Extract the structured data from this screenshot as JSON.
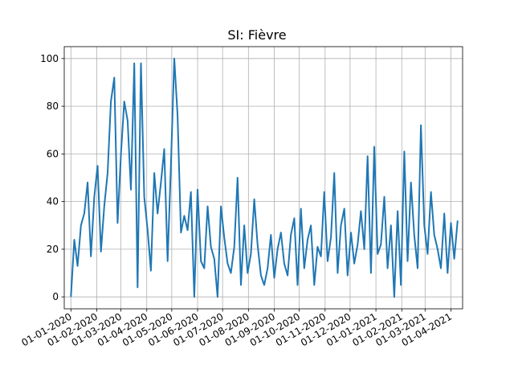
{
  "chart_data": {
    "type": "line",
    "title": "SI: Fièvre",
    "xlabel": "",
    "ylabel": "",
    "grid": true,
    "x_range": [
      "2019-12-24",
      "2021-04-15"
    ],
    "ylim": [
      -5,
      105
    ],
    "x_tick_dates": [
      "2020-01-01",
      "2020-02-01",
      "2020-03-01",
      "2020-04-01",
      "2020-05-01",
      "2020-06-01",
      "2020-07-01",
      "2020-08-01",
      "2020-09-01",
      "2020-10-01",
      "2020-11-01",
      "2020-12-01",
      "2021-01-01",
      "2021-02-01",
      "2021-03-01",
      "2021-04-01"
    ],
    "x_tick_labels": [
      "01-01-2020",
      "01-02-2020",
      "01-03-2020",
      "01-04-2020",
      "01-05-2020",
      "01-06-2020",
      "01-07-2020",
      "01-08-2020",
      "01-09-2020",
      "01-10-2020",
      "01-11-2020",
      "01-12-2020",
      "01-01-2021",
      "01-02-2021",
      "01-03-2021",
      "01-04-2021"
    ],
    "y_ticks": [
      0,
      20,
      40,
      60,
      80,
      100
    ],
    "y_tick_labels": [
      "0",
      "20",
      "40",
      "60",
      "80",
      "100"
    ],
    "series": [
      {
        "color": "#1f77b4",
        "x": [
          "2020-01-01",
          "2020-01-05",
          "2020-01-09",
          "2020-01-13",
          "2020-01-17",
          "2020-01-21",
          "2020-01-25",
          "2020-01-29",
          "2020-02-02",
          "2020-02-06",
          "2020-02-10",
          "2020-02-14",
          "2020-02-18",
          "2020-02-22",
          "2020-02-26",
          "2020-03-01",
          "2020-03-05",
          "2020-03-09",
          "2020-03-13",
          "2020-03-17",
          "2020-03-21",
          "2020-03-25",
          "2020-03-29",
          "2020-04-02",
          "2020-04-06",
          "2020-04-10",
          "2020-04-14",
          "2020-04-18",
          "2020-04-22",
          "2020-04-26",
          "2020-04-30",
          "2020-05-04",
          "2020-05-08",
          "2020-05-12",
          "2020-05-16",
          "2020-05-20",
          "2020-05-24",
          "2020-05-28",
          "2020-06-01",
          "2020-06-05",
          "2020-06-09",
          "2020-06-13",
          "2020-06-17",
          "2020-06-21",
          "2020-06-25",
          "2020-06-29",
          "2020-07-03",
          "2020-07-07",
          "2020-07-11",
          "2020-07-15",
          "2020-07-19",
          "2020-07-23",
          "2020-07-27",
          "2020-07-31",
          "2020-08-04",
          "2020-08-08",
          "2020-08-12",
          "2020-08-16",
          "2020-08-20",
          "2020-08-24",
          "2020-08-28",
          "2020-09-01",
          "2020-09-05",
          "2020-09-09",
          "2020-09-13",
          "2020-09-17",
          "2020-09-21",
          "2020-09-25",
          "2020-09-29",
          "2020-10-03",
          "2020-10-07",
          "2020-10-11",
          "2020-10-15",
          "2020-10-19",
          "2020-10-23",
          "2020-10-27",
          "2020-10-31",
          "2020-11-04",
          "2020-11-08",
          "2020-11-12",
          "2020-11-16",
          "2020-11-20",
          "2020-11-24",
          "2020-11-28",
          "2020-12-02",
          "2020-12-06",
          "2020-12-10",
          "2020-12-14",
          "2020-12-18",
          "2020-12-22",
          "2020-12-26",
          "2020-12-30",
          "2021-01-03",
          "2021-01-07",
          "2021-01-11",
          "2021-01-15",
          "2021-01-19",
          "2021-01-23",
          "2021-01-27",
          "2021-01-31",
          "2021-02-04",
          "2021-02-08",
          "2021-02-12",
          "2021-02-16",
          "2021-02-20",
          "2021-02-24",
          "2021-02-28",
          "2021-03-04",
          "2021-03-08",
          "2021-03-12",
          "2021-03-16",
          "2021-03-20",
          "2021-03-24",
          "2021-03-28",
          "2021-04-01",
          "2021-04-05",
          "2021-04-09"
        ],
        "y": [
          0,
          24,
          13,
          30,
          35,
          48,
          17,
          42,
          55,
          19,
          38,
          52,
          82,
          92,
          31,
          60,
          82,
          74,
          45,
          98,
          4,
          98,
          42,
          28,
          11,
          52,
          35,
          48,
          62,
          15,
          55,
          100,
          76,
          27,
          34,
          28,
          44,
          0,
          45,
          15,
          12,
          38,
          21,
          16,
          0,
          38,
          25,
          14,
          10,
          21,
          50,
          5,
          30,
          10,
          18,
          41,
          22,
          9,
          5,
          12,
          26,
          8,
          20,
          27,
          14,
          9,
          26,
          33,
          5,
          37,
          12,
          24,
          30,
          5,
          21,
          17,
          44,
          15,
          25,
          52,
          10,
          30,
          37,
          9,
          27,
          14,
          22,
          36,
          20,
          59,
          10,
          63,
          18,
          22,
          42,
          12,
          30,
          0,
          36,
          5,
          61,
          15,
          48,
          26,
          12,
          72,
          30,
          18,
          44,
          26,
          20,
          12,
          35,
          10,
          31,
          16,
          32
        ]
      }
    ]
  }
}
